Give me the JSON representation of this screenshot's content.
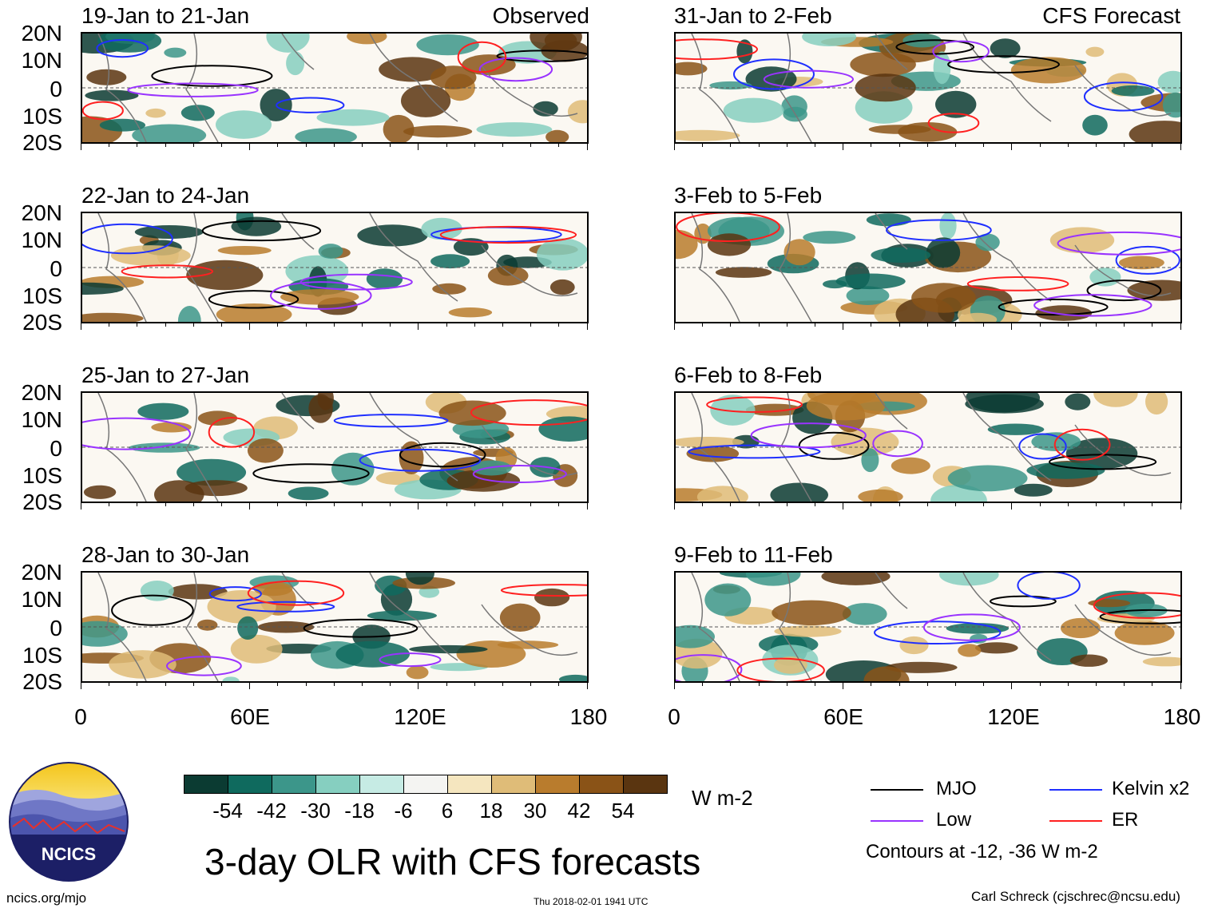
{
  "colors": {
    "mjo": "#000000",
    "low": "#9933ff",
    "kelvin": "#1f2fff",
    "er": "#ff2020",
    "scale": [
      "#0b3b32",
      "#0f6a5e",
      "#3c968a",
      "#86cfc0",
      "#c6ebe4",
      "#f4f4f2",
      "#f5e6bf",
      "#dfbc78",
      "#b97c2d",
      "#8a5317",
      "#5a3510"
    ]
  },
  "panels_left_header": "Observed",
  "panels_right_header": "CFS Forecast",
  "panels": [
    {
      "title": "19-Jan to 21-Jan",
      "col": "left",
      "row": 0
    },
    {
      "title": "22-Jan to 24-Jan",
      "col": "left",
      "row": 1
    },
    {
      "title": "25-Jan to 27-Jan",
      "col": "left",
      "row": 2
    },
    {
      "title": "28-Jan to 30-Jan",
      "col": "left",
      "row": 3
    },
    {
      "title": "31-Jan to 2-Feb",
      "col": "right",
      "row": 0
    },
    {
      "title": "3-Feb to 5-Feb",
      "col": "right",
      "row": 1
    },
    {
      "title": "6-Feb to 8-Feb",
      "col": "right",
      "row": 2
    },
    {
      "title": "9-Feb to 11-Feb",
      "col": "right",
      "row": 3
    }
  ],
  "lat_labels": [
    "20N",
    "10N",
    "0",
    "10S",
    "20S"
  ],
  "lon_labels": [
    "0",
    "60E",
    "120E",
    "180"
  ],
  "colorbar": {
    "labels": [
      "-54",
      "-42",
      "-30",
      "-18",
      "-6",
      "6",
      "18",
      "30",
      "42",
      "54"
    ],
    "units": "W m-2"
  },
  "legend": {
    "mjo": "MJO",
    "kelvin": "Kelvin x2",
    "low": "Low",
    "er": "ER",
    "contours": "Contours at -12, -36 W m-2"
  },
  "logo": {
    "text": "NCICS"
  },
  "main_title": "3-day OLR with CFS forecasts",
  "footer": {
    "url": "ncics.org/mjo",
    "timestamp": "Thu 2018-02-01 1941 UTC",
    "credit": "Carl Schreck (cjschrec@ncsu.edu)"
  }
}
